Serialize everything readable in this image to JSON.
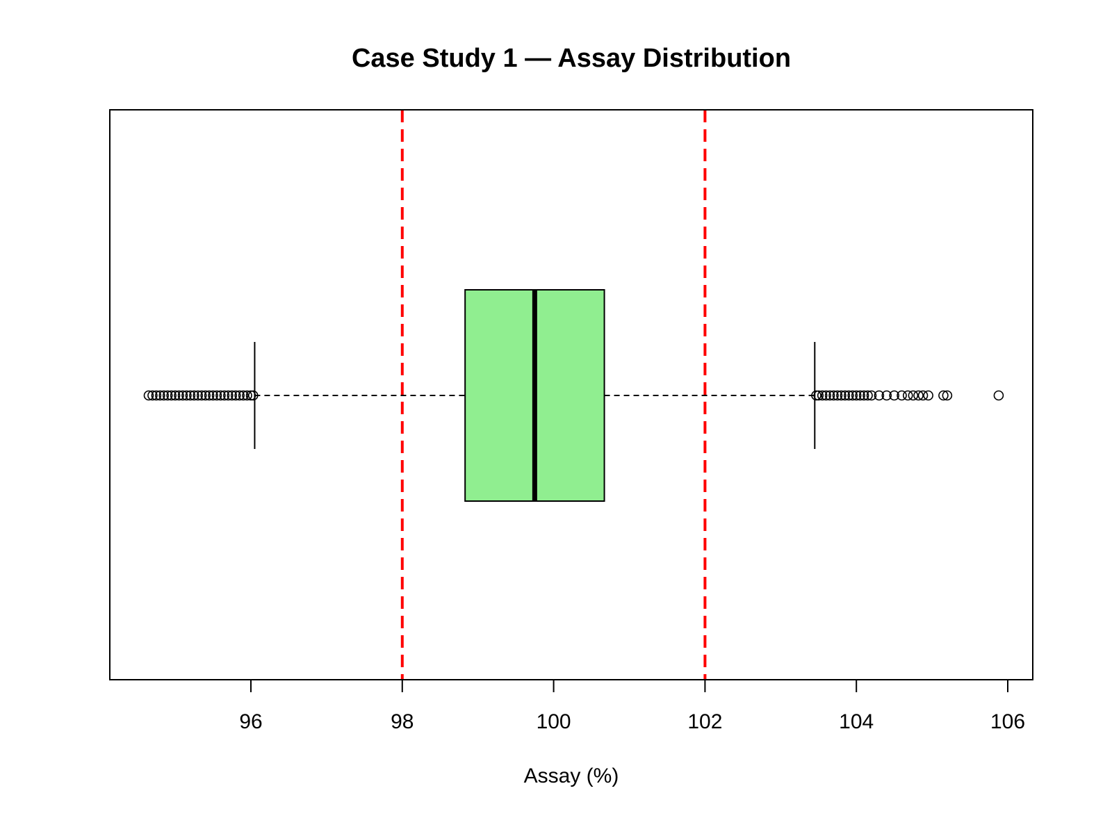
{
  "chart_data": {
    "type": "boxplot",
    "orientation": "horizontal",
    "title": "Case Study 1 — Assay Distribution",
    "xlabel": "Assay (%)",
    "ylabel": "",
    "xlim": [
      94.5,
      106.3
    ],
    "x_ticks": [
      96,
      98,
      100,
      102,
      104,
      106
    ],
    "x_tick_labels": [
      "96",
      "98",
      "100",
      "102",
      "104",
      "106"
    ],
    "box": {
      "whisker_low": 96.05,
      "q1": 98.83,
      "median": 99.75,
      "q3": 100.67,
      "whisker_high": 103.45,
      "fill_color": "#90EE90"
    },
    "outliers_low": [
      94.65,
      94.7,
      94.75,
      94.8,
      94.85,
      94.9,
      94.95,
      95.0,
      95.05,
      95.1,
      95.15,
      95.2,
      95.25,
      95.3,
      95.35,
      95.4,
      95.45,
      95.5,
      95.55,
      95.6,
      95.65,
      95.7,
      95.75,
      95.8,
      95.85,
      95.9,
      95.95,
      96.0,
      96.03
    ],
    "outliers_high": [
      103.47,
      103.5,
      103.55,
      103.6,
      103.65,
      103.7,
      103.75,
      103.8,
      103.85,
      103.9,
      103.95,
      104.0,
      104.05,
      104.1,
      104.15,
      104.2,
      104.3,
      104.4,
      104.5,
      104.6,
      104.68,
      104.75,
      104.82,
      104.88,
      104.95,
      105.15,
      105.2,
      105.88
    ],
    "reference_lines": [
      {
        "value": 98,
        "color": "#FF0000",
        "style": "dashed"
      },
      {
        "value": 102,
        "color": "#FF0000",
        "style": "dashed"
      }
    ],
    "grid": false,
    "legend": "none"
  }
}
